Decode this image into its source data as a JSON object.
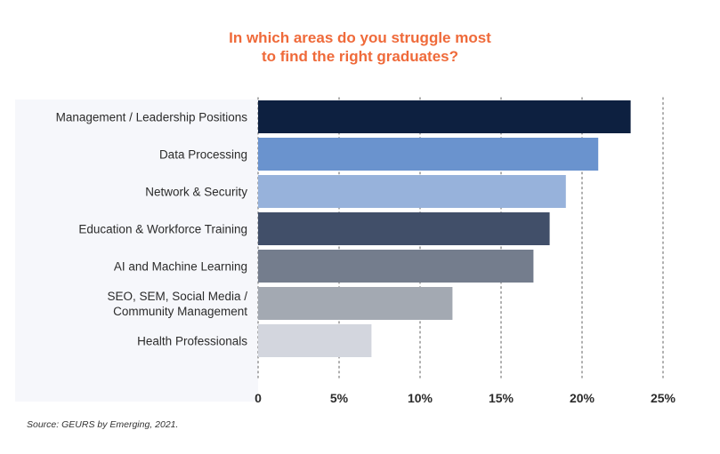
{
  "chart_data": {
    "type": "bar",
    "orientation": "horizontal",
    "title_lines": [
      "In which areas do you struggle most",
      "to find the right graduates?"
    ],
    "categories": [
      [
        "Management / Leadership Positions"
      ],
      [
        "Data Processing"
      ],
      [
        "Network & Security"
      ],
      [
        "Education & Workforce Training"
      ],
      [
        "AI and Machine Learning"
      ],
      [
        "SEO, SEM, Social Media /",
        "Community Management"
      ],
      [
        "Health Professionals"
      ]
    ],
    "values": [
      23,
      21,
      19,
      18,
      17,
      12,
      7
    ],
    "bar_colors": [
      "#0d2040",
      "#6a93ce",
      "#97b2db",
      "#414f69",
      "#747d8d",
      "#a3a9b2",
      "#d3d6de"
    ],
    "xlim": [
      0,
      25
    ],
    "ticks": [
      0,
      5,
      10,
      15,
      20,
      25
    ],
    "tick_labels": [
      "0",
      "5%",
      "10%",
      "15%",
      "20%",
      "25%"
    ],
    "grid": "vertical dotted",
    "title_color": "#ef6a3a",
    "source": "Source: GEURS by Emerging, 2021."
  }
}
